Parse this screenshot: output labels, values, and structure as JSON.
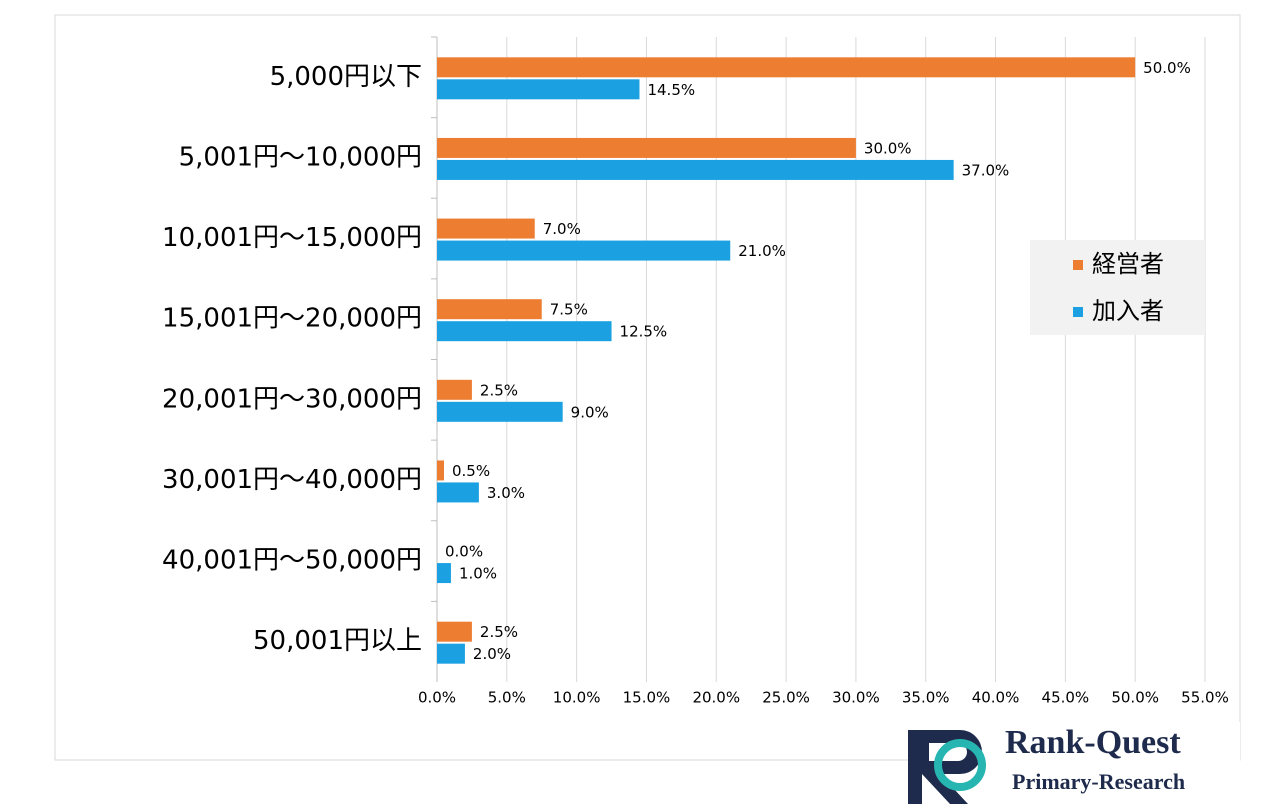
{
  "chart_data": {
    "type": "hbar",
    "categories": [
      "5,000円以下",
      "5,001円～10,000円",
      "10,001円～15,000円",
      "15,001円～20,000円",
      "20,001円～30,000円",
      "30,001円～40,000円",
      "40,001円～50,000円",
      "50,001円以上"
    ],
    "series": [
      {
        "name": "経営者",
        "color": "#ed7d31",
        "values": [
          50,
          30,
          7,
          7.5,
          2.5,
          0.5,
          0,
          2.5
        ],
        "value_labels": [
          "50.0%",
          "30.0%",
          "7.0%",
          "7.5%",
          "2.5%",
          "0.5%",
          "0.0%",
          "2.5%"
        ]
      },
      {
        "name": "加入者",
        "color": "#1ba1e2",
        "values": [
          14.5,
          37,
          21,
          12.5,
          9,
          3,
          1,
          2
        ],
        "value_labels": [
          "14.5%",
          "37.0%",
          "21.0%",
          "12.5%",
          "9.0%",
          "3.0%",
          "1.0%",
          "2.0%"
        ]
      }
    ],
    "xlim": [
      0,
      55
    ],
    "xticks": [
      {
        "value": 0,
        "label": "0.0%"
      },
      {
        "value": 5,
        "label": "5.0%"
      },
      {
        "value": 10,
        "label": "10.0%"
      },
      {
        "value": 15,
        "label": "15.0%"
      },
      {
        "value": 20,
        "label": "20.0%"
      },
      {
        "value": 25,
        "label": "25.0%"
      },
      {
        "value": 30,
        "label": "30.0%"
      },
      {
        "value": 35,
        "label": "35.0%"
      },
      {
        "value": 40,
        "label": "40.0%"
      },
      {
        "value": 45,
        "label": "45.0%"
      },
      {
        "value": 50,
        "label": "50.0%"
      },
      {
        "value": 55,
        "label": "55.0%"
      }
    ],
    "grid": true,
    "legend": "right"
  },
  "logo": {
    "name": "Rank-Quest",
    "tagline": "Primary-Research"
  }
}
